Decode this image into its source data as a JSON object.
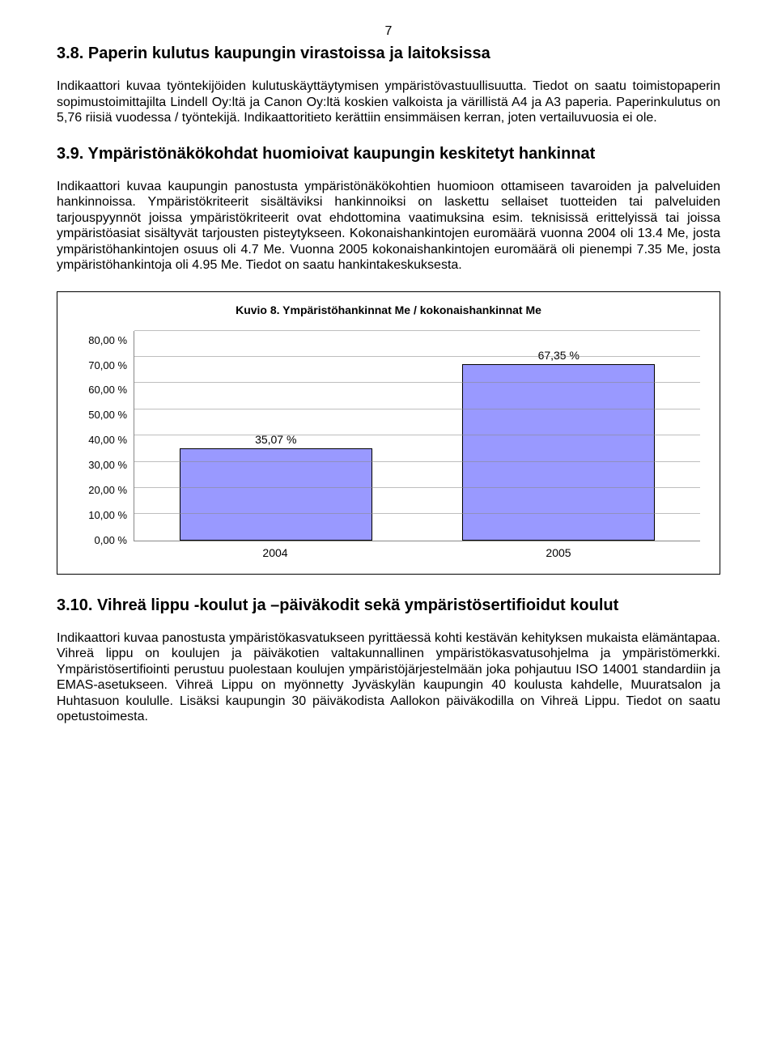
{
  "page_number": "7",
  "section_38": {
    "heading": "3.8. Paperin kulutus kaupungin virastoissa ja laitoksissa",
    "body": "Indikaattori kuvaa työntekijöiden kulutuskäyttäytymisen ympäristövastuullisuutta. Tiedot on saatu toimistopaperin sopimustoimittajilta Lindell Oy:ltä ja Canon Oy:ltä koskien valkoista ja värillistä A4 ja A3 paperia. Paperinkulutus on 5,76 riisiä vuodessa / työntekijä. Indikaattoritieto kerättiin ensimmäisen kerran, joten vertailuvuosia ei ole."
  },
  "section_39": {
    "heading": "3.9. Ympäristönäkökohdat huomioivat kaupungin keskitetyt hankinnat",
    "body": "Indikaattori kuvaa kaupungin panostusta ympäristönäkökohtien huomioon ottamiseen tavaroiden ja palveluiden hankinnoissa. Ympäristökriteerit sisältäviksi hankinnoiksi on laskettu sellaiset tuotteiden tai palveluiden tarjouspyynnöt joissa ympäristökriteerit ovat ehdottomina vaatimuksina esim. teknisissä erittelyissä tai joissa ympäristöasiat sisältyvät tarjousten pisteytykseen. Kokonaishankintojen euromäärä vuonna 2004 oli 13.4 Me, josta ympäristöhankintojen osuus oli 4.7 Me. Vuonna 2005 kokonaishankintojen euromäärä oli pienempi 7.35 Me, josta ympäristöhankintoja oli 4.95 Me. Tiedot on saatu hankintakeskuksesta."
  },
  "chart8": {
    "type": "bar",
    "title": "Kuvio 8. Ympäristöhankinnat Me / kokonaishankinnat Me",
    "categories": [
      "2004",
      "2005"
    ],
    "values": [
      35.07,
      67.35
    ],
    "value_labels": [
      "35,07 %",
      "67,35 %"
    ],
    "bar_color": "#9999ff",
    "bar_border": "#000000",
    "ylim": [
      0,
      80
    ],
    "ytick_step": 10,
    "yticks": [
      "80,00 %",
      "70,00 %",
      "60,00 %",
      "50,00 %",
      "40,00 %",
      "30,00 %",
      "20,00 %",
      "10,00 %",
      "0,00 %"
    ],
    "grid_color": "#888888",
    "background_color": "#ffffff",
    "bar_width": 0.68,
    "title_fontsize": 14,
    "label_fontsize": 14
  },
  "section_310": {
    "heading": "3.10. Vihreä lippu -koulut ja –päiväkodit sekä ympäristösertifioidut koulut",
    "body": "Indikaattori kuvaa panostusta ympäristökasvatukseen pyrittäessä kohti kestävän kehityksen mukaista elämäntapaa. Vihreä lippu on koulujen ja päiväkotien valtakunnallinen ympäristökasvatusohjelma ja ympäristömerkki. Ympäristösertifiointi perustuu puolestaan koulujen ympäristöjärjestelmään joka pohjautuu ISO 14001 standardiin ja EMAS-asetukseen. Vihreä Lippu on myönnetty Jyväskylän kaupungin 40 koulusta kahdelle, Muuratsalon ja Huhtasuon koululle. Lisäksi kaupungin 30 päiväkodista Aallokon päiväkodilla on Vihreä Lippu. Tiedot on saatu opetustoimesta."
  }
}
